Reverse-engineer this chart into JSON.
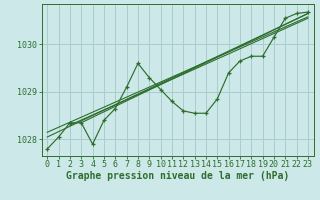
{
  "xlabel": "Graphe pression niveau de la mer (hPa)",
  "background_color": "#cce8e8",
  "grid_color": "#aacccc",
  "line_color": "#2d6e2d",
  "xlim": [
    -0.5,
    23.5
  ],
  "ylim": [
    1027.65,
    1030.85
  ],
  "yticks": [
    1028,
    1029,
    1030
  ],
  "xticks": [
    0,
    1,
    2,
    3,
    4,
    5,
    6,
    7,
    8,
    9,
    10,
    11,
    12,
    13,
    14,
    15,
    16,
    17,
    18,
    19,
    20,
    21,
    22,
    23
  ],
  "main_line": {
    "x": [
      0,
      1,
      2,
      3,
      4,
      5,
      6,
      7,
      8,
      9,
      10,
      11,
      12,
      13,
      14,
      15,
      16,
      17,
      18,
      19,
      20,
      21,
      22,
      23
    ],
    "y": [
      1027.8,
      1028.05,
      1028.35,
      1028.35,
      1027.9,
      1028.4,
      1028.65,
      1029.1,
      1029.6,
      1029.3,
      1029.05,
      1028.8,
      1028.6,
      1028.55,
      1028.55,
      1028.85,
      1029.4,
      1029.65,
      1029.75,
      1029.75,
      1030.15,
      1030.55,
      1030.65,
      1030.68
    ]
  },
  "trend_lines": [
    {
      "x": [
        0,
        23
      ],
      "y": [
        1028.05,
        1030.65
      ]
    },
    {
      "x": [
        0,
        23
      ],
      "y": [
        1028.15,
        1030.58
      ]
    },
    {
      "x": [
        3,
        23
      ],
      "y": [
        1028.35,
        1030.65
      ]
    },
    {
      "x": [
        2,
        23
      ],
      "y": [
        1028.3,
        1030.55
      ]
    }
  ],
  "xlabel_fontsize": 7,
  "tick_fontsize": 6,
  "fig_width": 3.2,
  "fig_height": 2.0,
  "dpi": 100
}
